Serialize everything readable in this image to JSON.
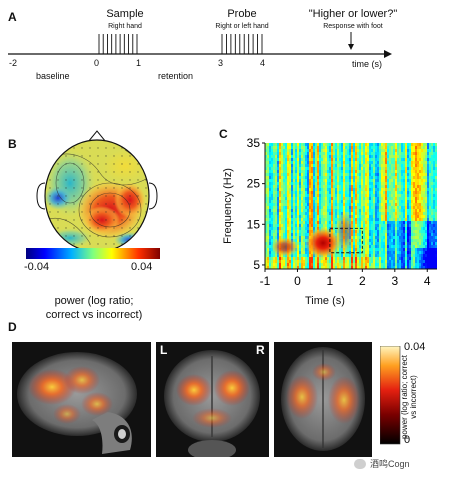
{
  "panels": {
    "a": {
      "label": "A",
      "events": {
        "sample": {
          "title": "Sample",
          "sub": "Right hand"
        },
        "probe": {
          "title": "Probe",
          "sub": "Right or left hand"
        },
        "response": {
          "title": "\"Higher or lower?\"",
          "sub": "Response with foot"
        }
      },
      "ticks": [
        "-2",
        "0",
        "1",
        "3",
        "4"
      ],
      "segments": {
        "baseline": "baseline",
        "retention": "retention"
      },
      "axis_label": "time (s)"
    },
    "b": {
      "label": "B",
      "colorbar_min": "-0.04",
      "colorbar_max": "0.04",
      "colorbar_caption_1": "power (log ratio;",
      "colorbar_caption_2": "correct vs incorrect)"
    },
    "c": {
      "label": "C",
      "ylabel": "Frequency (Hz)",
      "xlabel": "Time (s)",
      "yticks": [
        "35",
        "25",
        "15",
        "5"
      ],
      "xticks": [
        "-1",
        "0",
        "1",
        "2",
        "3",
        "4"
      ]
    },
    "d": {
      "label": "D",
      "left_marker": "L",
      "right_marker": "R",
      "colorbar_max": "0.04",
      "colorbar_min": "0",
      "colorbar_caption": "power (log ratio; correct vs incorrect)"
    }
  },
  "watermark": {
    "text": "酒鸣Cogn"
  },
  "chart_data": {
    "type": "heatmap",
    "title": "",
    "xlabel": "Time (s)",
    "ylabel": "Frequency (Hz)",
    "x_ticks": [
      -1,
      0,
      1,
      2,
      3,
      4
    ],
    "y_ticks": [
      5,
      15,
      25,
      35
    ],
    "xlim": [
      -1,
      4.3
    ],
    "ylim": [
      4,
      35
    ],
    "color_scale": {
      "min": -0.04,
      "max": 0.04,
      "palette": "jet"
    },
    "roi": {
      "t_start": 1.0,
      "t_end": 2.0,
      "f_low": 8,
      "f_high": 14
    },
    "hotspot": {
      "t": 1.3,
      "f": 11,
      "value": 0.04
    }
  }
}
